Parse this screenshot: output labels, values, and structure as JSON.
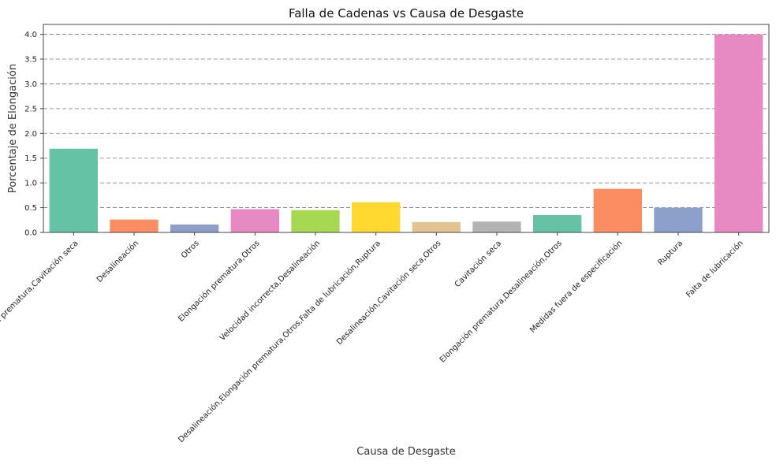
{
  "chart_data": {
    "type": "bar",
    "title": "Falla de Cadenas vs Causa de Desgaste",
    "xlabel": "Causa de Desgaste",
    "ylabel": "Porcentaje de Elongación",
    "ylim": [
      0,
      4.2
    ],
    "yticks": [
      "0.0",
      "0.5",
      "1.0",
      "1.5",
      "2.0",
      "2.5",
      "3.0",
      "3.5",
      "4.0"
    ],
    "grid": "horizontal dashed",
    "categories": [
      [
        "Elongación prematura,Cavitación seca"
      ],
      [
        "Desalineación"
      ],
      [
        "Otros"
      ],
      [
        "Elongación prematura,Otros"
      ],
      [
        "Velocidad incorrecta,Desalineación"
      ],
      [
        "Desalineación,Elongación prematura,Otros,Falta de lubricación,Ruptura"
      ],
      [
        "Desalineación,Cavitación seca,Otros"
      ],
      [
        "Cavitación seca"
      ],
      [
        "Elongación prematura,Desalineación,Otros"
      ],
      [
        "Medidas fuera de especificación"
      ],
      [
        "Ruptura"
      ],
      [
        "Falta de lubricación"
      ]
    ],
    "values": [
      1.69,
      0.26,
      0.16,
      0.47,
      0.45,
      0.61,
      0.21,
      0.22,
      0.35,
      0.88,
      0.5,
      4.0
    ],
    "colors": [
      "#66c2a5",
      "#fc8d62",
      "#8da0cb",
      "#e78ac3",
      "#a6d854",
      "#ffd92f",
      "#e5c494",
      "#b3b3b3",
      "#66c2a5",
      "#fc8d62",
      "#8da0cb",
      "#e78ac3"
    ]
  }
}
